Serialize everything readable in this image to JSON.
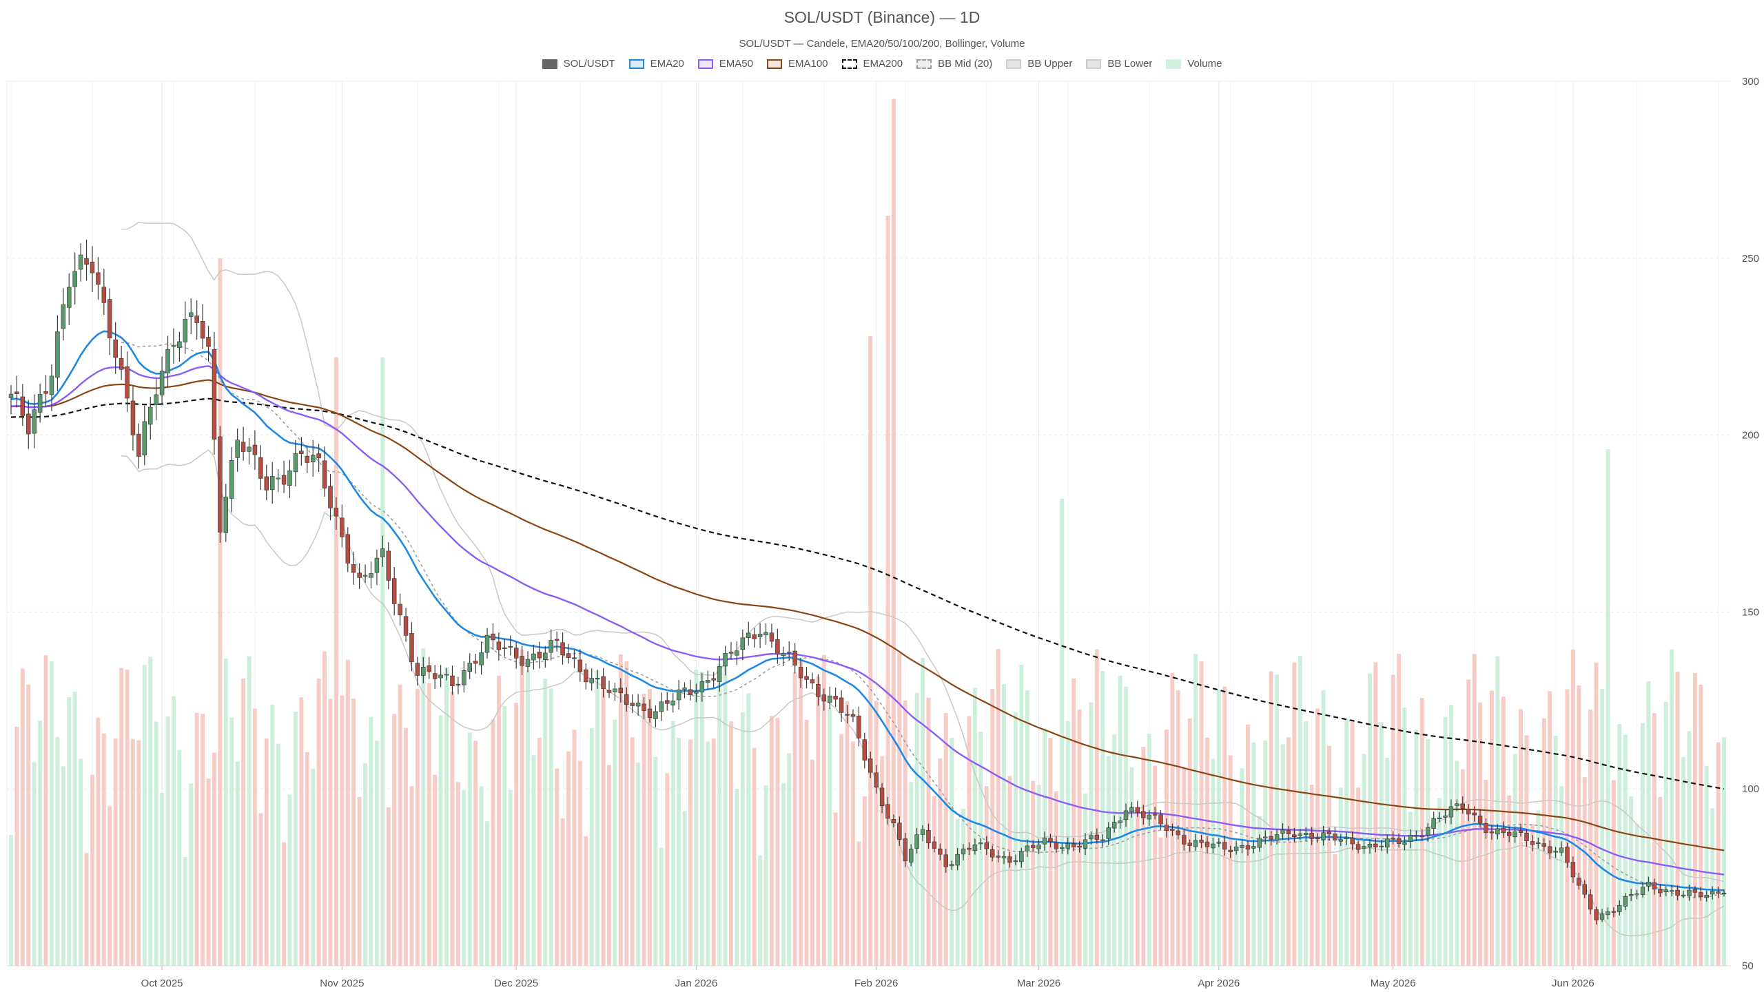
{
  "chart_data": {
    "type": "candlestick",
    "title": "SOL/USDT (Binance) — 1D",
    "subtitle": "SOL/USDT — Candele, EMA20/50/100/200, Bollinger, Volume",
    "y_axis": {
      "position": "right",
      "range": [
        50,
        300
      ],
      "ticks": [
        "50",
        "100",
        "150",
        "200",
        "250",
        "300"
      ]
    },
    "x_axis": {
      "range": [
        "2025-09-05",
        "2026-06-27"
      ],
      "ticks": [
        {
          "date": "2025-10-01",
          "label": "Oct 2025"
        },
        {
          "date": "2025-11-01",
          "label": "Nov 2025"
        },
        {
          "date": "2025-12-01",
          "label": "Dec 2025"
        },
        {
          "date": "2026-01-01",
          "label": "Jan 2026"
        },
        {
          "date": "2026-02-01",
          "label": "Feb 2026"
        },
        {
          "date": "2026-03-01",
          "label": "Mar 2026"
        },
        {
          "date": "2026-04-01",
          "label": "Apr 2026"
        },
        {
          "date": "2026-05-01",
          "label": "May 2026"
        },
        {
          "date": "2026-06-01",
          "label": "Jun 2026"
        }
      ]
    },
    "grid": true,
    "legend": [
      {
        "name": "SOL/USDT",
        "fill": "#666666",
        "stroke": "#666666",
        "dash": false
      },
      {
        "name": "EMA20",
        "fill": "#dbeafe",
        "stroke": "#1e88e5",
        "dash": false
      },
      {
        "name": "EMA50",
        "fill": "#efe6fd",
        "stroke": "#8b5cf6",
        "dash": false
      },
      {
        "name": "EMA100",
        "fill": "#f3e8df",
        "stroke": "#8b4513",
        "dash": false
      },
      {
        "name": "EMA200",
        "fill": "#ffffff",
        "stroke": "#111111",
        "dash": true
      },
      {
        "name": "BB Mid (20)",
        "fill": "#eeeeee",
        "stroke": "#999999",
        "dash": true
      },
      {
        "name": "BB Upper",
        "fill": "#e5e5e5",
        "stroke": "#cccccc",
        "dash": false
      },
      {
        "name": "BB Lower",
        "fill": "#e5e5e5",
        "stroke": "#cccccc",
        "dash": false
      },
      {
        "name": "Volume",
        "fill": "#d1f2e0",
        "stroke": "#d1f2e0",
        "dash": false
      }
    ],
    "colors": {
      "up": "#5b9a6e",
      "down": "#b24f42",
      "vol_up": "#c6ecd6",
      "vol_down": "#f6c7c0"
    },
    "price_anchors": [
      [
        "2025-09-05",
        210
      ],
      [
        "2025-09-08",
        202
      ],
      [
        "2025-09-12",
        220
      ],
      [
        "2025-09-15",
        243
      ],
      [
        "2025-09-19",
        249
      ],
      [
        "2025-09-23",
        225
      ],
      [
        "2025-09-25",
        208
      ],
      [
        "2025-09-27",
        193
      ],
      [
        "2025-09-30",
        215
      ],
      [
        "2025-10-03",
        228
      ],
      [
        "2025-10-07",
        232
      ],
      [
        "2025-10-09",
        222
      ],
      [
        "2025-10-11",
        176
      ],
      [
        "2025-10-14",
        200
      ],
      [
        "2025-10-19",
        185
      ],
      [
        "2025-10-25",
        195
      ],
      [
        "2025-10-28",
        190
      ],
      [
        "2025-11-04",
        158
      ],
      [
        "2025-11-08",
        165
      ],
      [
        "2025-11-14",
        133
      ],
      [
        "2025-11-20",
        130
      ],
      [
        "2025-11-26",
        141
      ],
      [
        "2025-12-03",
        137
      ],
      [
        "2025-12-08",
        140
      ],
      [
        "2025-12-13",
        133
      ],
      [
        "2025-12-18",
        126
      ],
      [
        "2025-12-25",
        122
      ],
      [
        "2026-01-02",
        130
      ],
      [
        "2026-01-06",
        136
      ],
      [
        "2026-01-12",
        146
      ],
      [
        "2026-01-16",
        138
      ],
      [
        "2026-01-20",
        130
      ],
      [
        "2026-01-25",
        125
      ],
      [
        "2026-01-28",
        118
      ],
      [
        "2026-02-01",
        100
      ],
      [
        "2026-02-04",
        90
      ],
      [
        "2026-02-06",
        80
      ],
      [
        "2026-02-09",
        88
      ],
      [
        "2026-02-13",
        79
      ],
      [
        "2026-02-18",
        84
      ],
      [
        "2026-02-24",
        80
      ],
      [
        "2026-03-02",
        85
      ],
      [
        "2026-03-07",
        84
      ],
      [
        "2026-03-12",
        86
      ],
      [
        "2026-03-16",
        95
      ],
      [
        "2026-03-22",
        90
      ],
      [
        "2026-03-27",
        85
      ],
      [
        "2026-04-02",
        83
      ],
      [
        "2026-04-08",
        85
      ],
      [
        "2026-04-14",
        88
      ],
      [
        "2026-04-20",
        86
      ],
      [
        "2026-04-27",
        84
      ],
      [
        "2026-05-03",
        85
      ],
      [
        "2026-05-09",
        92
      ],
      [
        "2026-05-13",
        95
      ],
      [
        "2026-05-18",
        88
      ],
      [
        "2026-05-24",
        86
      ],
      [
        "2026-05-30",
        82
      ],
      [
        "2026-06-02",
        72
      ],
      [
        "2026-06-05",
        64
      ],
      [
        "2026-06-08",
        66
      ],
      [
        "2026-06-14",
        73
      ],
      [
        "2026-06-20",
        70
      ],
      [
        "2026-06-24",
        70
      ],
      [
        "2026-06-27",
        72
      ]
    ],
    "volume_spikes": [
      {
        "date": "2025-10-11",
        "value": 250
      },
      {
        "date": "2025-10-31",
        "value": 222
      },
      {
        "date": "2025-11-08",
        "value": 222
      },
      {
        "date": "2026-01-31",
        "value": 228
      },
      {
        "date": "2026-02-04",
        "value": 295
      },
      {
        "date": "2026-02-03",
        "value": 262
      },
      {
        "date": "2026-03-05",
        "value": 182
      },
      {
        "date": "2026-06-07",
        "value": 196
      }
    ]
  }
}
